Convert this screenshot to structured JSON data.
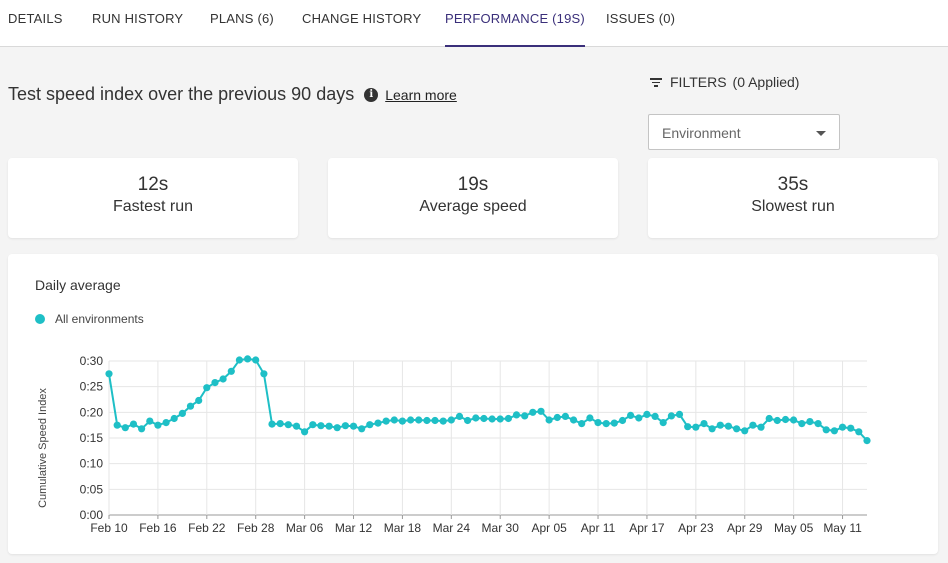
{
  "tabs": [
    {
      "label": "DETAILS",
      "active": false
    },
    {
      "label": "RUN HISTORY",
      "active": false
    },
    {
      "label": "PLANS (6)",
      "active": false
    },
    {
      "label": "CHANGE HISTORY",
      "active": false
    },
    {
      "label": "PERFORMANCE (19S)",
      "active": true
    },
    {
      "label": "ISSUES (0)",
      "active": false
    }
  ],
  "header": {
    "title": "Test speed index over the previous 90 days",
    "info_icon": "info-icon",
    "learn_more": "Learn more"
  },
  "filters": {
    "icon": "filter-icon",
    "label": "FILTERS",
    "applied": "(0 Applied)",
    "environment_select": {
      "value": "Environment",
      "icon": "chevron-down-icon"
    }
  },
  "stats": [
    {
      "value": "12s",
      "label": "Fastest run"
    },
    {
      "value": "19s",
      "label": "Average speed"
    },
    {
      "value": "35s",
      "label": "Slowest run"
    }
  ],
  "colors": {
    "accent": "#3a2f7a",
    "series": "#1ebfc6"
  },
  "chart_data": {
    "type": "line",
    "title": "Daily average",
    "legend": "top-left",
    "series": [
      {
        "name": "All environments",
        "color": "#1ebfc6"
      }
    ],
    "ylabel": "Cumulative Speed Index",
    "yticks": [
      "0:00",
      "0:05",
      "0:10",
      "0:15",
      "0:20",
      "0:25",
      "0:30"
    ],
    "ylim_seconds": [
      0,
      30
    ],
    "xticks": [
      "Feb 10",
      "Feb 16",
      "Feb 22",
      "Feb 28",
      "Mar 06",
      "Mar 12",
      "Mar 18",
      "Mar 24",
      "Mar 30",
      "Apr 05",
      "Apr 11",
      "Apr 17",
      "Apr 23",
      "Apr 29",
      "May 05",
      "May 11"
    ],
    "x_start": "Feb 10",
    "x_end": "May 11",
    "values_seconds": [
      27.5,
      17.5,
      17,
      17.7,
      16.8,
      18.3,
      17.5,
      18,
      18.8,
      19.8,
      21.2,
      22.3,
      24.8,
      25.8,
      26.5,
      28,
      30.2,
      30.4,
      30.2,
      27.5,
      17.7,
      17.8,
      17.6,
      17.3,
      16.2,
      17.6,
      17.4,
      17.3,
      17,
      17.4,
      17.3,
      16.8,
      17.6,
      17.9,
      18.3,
      18.5,
      18.3,
      18.5,
      18.5,
      18.4,
      18.4,
      18.3,
      18.5,
      19.2,
      18.4,
      18.9,
      18.8,
      18.7,
      18.7,
      18.8,
      19.5,
      19.3,
      20,
      20.2,
      18.5,
      19,
      19.2,
      18.5,
      17.8,
      18.9,
      18,
      17.8,
      17.9,
      18.4,
      19.4,
      18.9,
      19.6,
      19.2,
      18,
      19.3,
      19.6,
      17.2,
      17.1,
      17.8,
      16.8,
      17.5,
      17.3,
      16.8,
      16.4,
      17.5,
      17.1,
      18.8,
      18.4,
      18.6,
      18.5,
      17.8,
      18.2,
      17.8,
      16.6,
      16.4,
      17.1,
      16.9,
      16.2,
      14.5
    ]
  }
}
